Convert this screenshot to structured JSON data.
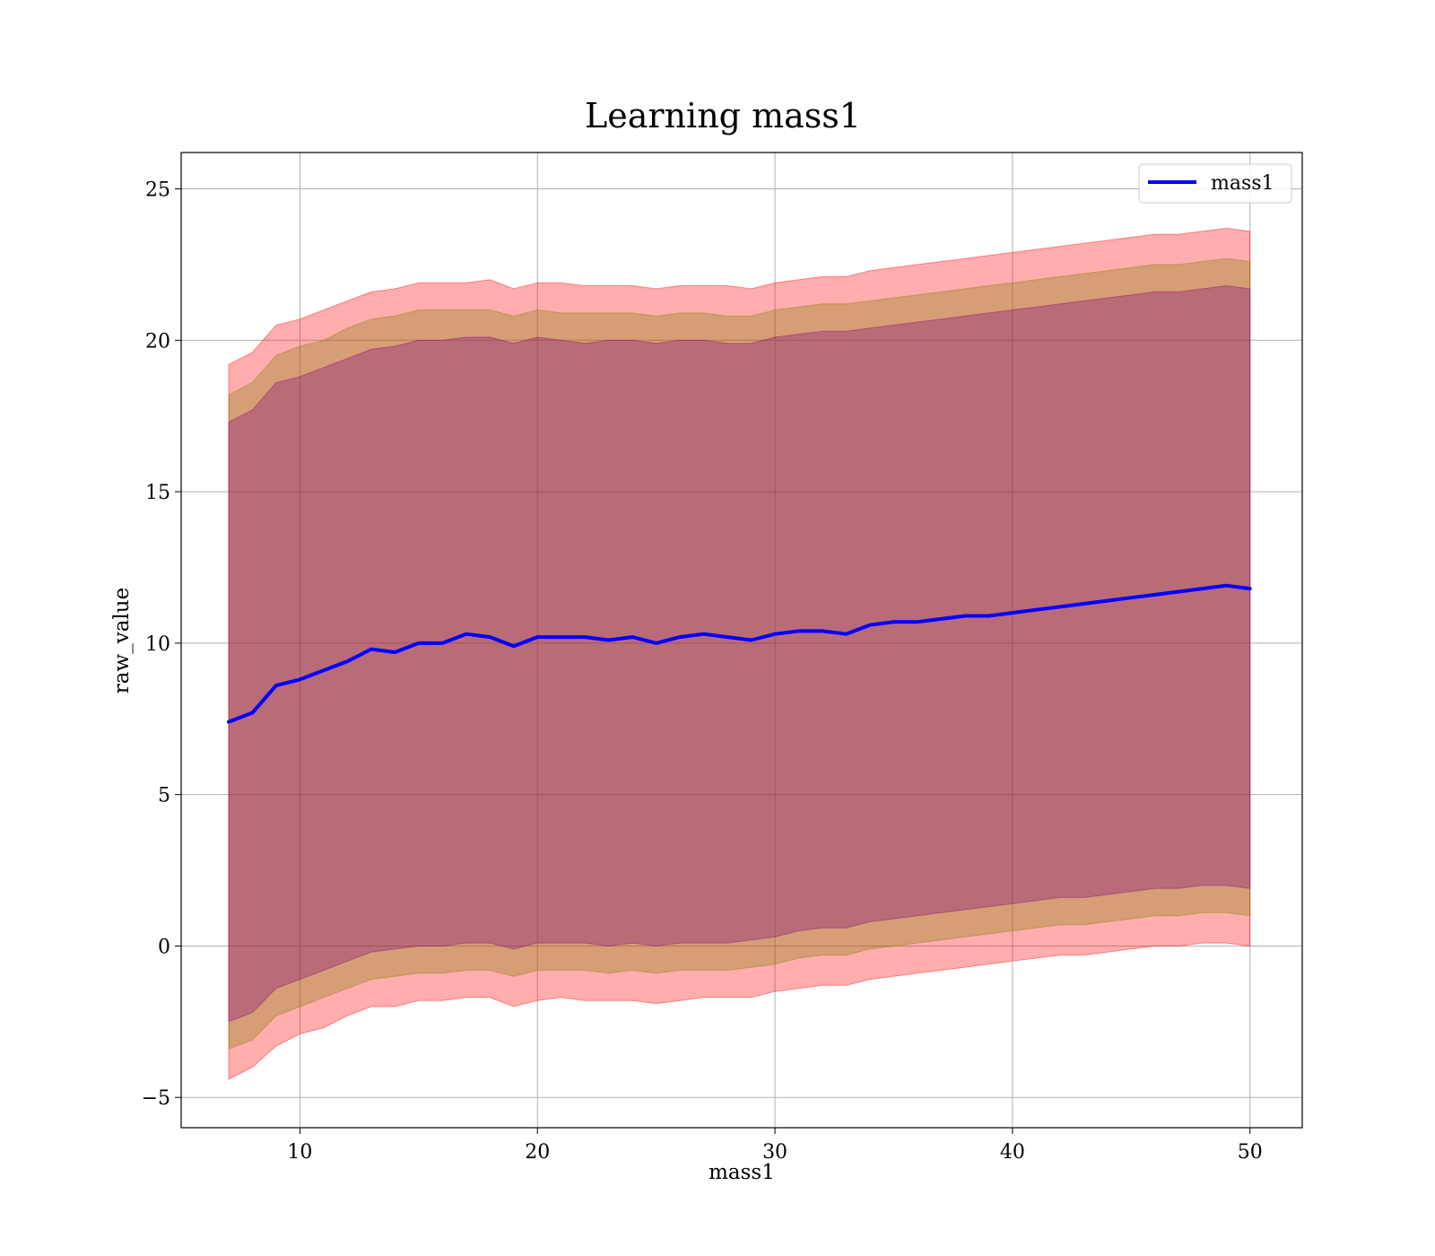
{
  "chart_data": {
    "type": "line",
    "title": "Learning mass1",
    "xlabel": "mass1",
    "ylabel": "raw_value",
    "xlim": [
      5,
      52.2
    ],
    "ylim": [
      -6,
      26.2
    ],
    "xticks": [
      10,
      20,
      30,
      40,
      50
    ],
    "yticks": [
      -5,
      0,
      5,
      10,
      15,
      20,
      25
    ],
    "ytick_labels": [
      "−5",
      "0",
      "5",
      "10",
      "15",
      "20",
      "25"
    ],
    "grid": true,
    "legend_position": "top-right",
    "series": [
      {
        "name": "mass1",
        "color": "#0000ff",
        "x": [
          7,
          8,
          9,
          10,
          11,
          12,
          13,
          14,
          15,
          16,
          17,
          18,
          19,
          20,
          21,
          22,
          23,
          24,
          25,
          26,
          27,
          28,
          29,
          30,
          31,
          32,
          33,
          34,
          35,
          36,
          37,
          38,
          39,
          40,
          41,
          42,
          43,
          44,
          45,
          46,
          47,
          48,
          49,
          50
        ],
        "y": [
          7.4,
          7.7,
          8.6,
          8.8,
          9.1,
          9.4,
          9.8,
          9.7,
          10.0,
          10.0,
          10.3,
          10.2,
          9.9,
          10.2,
          10.2,
          10.2,
          10.1,
          10.2,
          10.0,
          10.2,
          10.3,
          10.2,
          10.1,
          10.3,
          10.4,
          10.4,
          10.3,
          10.6,
          10.7,
          10.7,
          10.8,
          10.9,
          10.9,
          11.0,
          11.1,
          11.2,
          11.3,
          11.4,
          11.5,
          11.6,
          11.7,
          11.8,
          11.9,
          11.8
        ]
      }
    ],
    "bands": [
      {
        "color": "#ff0000",
        "x": [
          7,
          8,
          9,
          10,
          11,
          12,
          13,
          14,
          15,
          16,
          17,
          18,
          19,
          20,
          21,
          22,
          23,
          24,
          25,
          26,
          27,
          28,
          29,
          30,
          31,
          32,
          33,
          34,
          35,
          36,
          37,
          38,
          39,
          40,
          41,
          42,
          43,
          44,
          45,
          46,
          47,
          48,
          49,
          50
        ],
        "upper": [
          19.2,
          19.6,
          20.5,
          20.7,
          21.0,
          21.3,
          21.6,
          21.7,
          21.9,
          21.9,
          21.9,
          22.0,
          21.7,
          21.9,
          21.9,
          21.8,
          21.8,
          21.8,
          21.7,
          21.8,
          21.8,
          21.8,
          21.7,
          21.9,
          22.0,
          22.1,
          22.1,
          22.3,
          22.4,
          22.5,
          22.6,
          22.7,
          22.8,
          22.9,
          23.0,
          23.1,
          23.2,
          23.3,
          23.4,
          23.5,
          23.5,
          23.6,
          23.7,
          23.6
        ],
        "lower": [
          -4.4,
          -4.0,
          -3.3,
          -2.9,
          -2.7,
          -2.3,
          -2.0,
          -2.0,
          -1.8,
          -1.8,
          -1.7,
          -1.7,
          -2.0,
          -1.8,
          -1.7,
          -1.8,
          -1.8,
          -1.8,
          -1.9,
          -1.8,
          -1.7,
          -1.7,
          -1.7,
          -1.5,
          -1.4,
          -1.3,
          -1.3,
          -1.1,
          -1.0,
          -0.9,
          -0.8,
          -0.7,
          -0.6,
          -0.5,
          -0.4,
          -0.3,
          -0.3,
          -0.2,
          -0.1,
          0.0,
          0.0,
          0.1,
          0.1,
          0.0
        ]
      },
      {
        "color": "#808000",
        "x": [
          7,
          8,
          9,
          10,
          11,
          12,
          13,
          14,
          15,
          16,
          17,
          18,
          19,
          20,
          21,
          22,
          23,
          24,
          25,
          26,
          27,
          28,
          29,
          30,
          31,
          32,
          33,
          34,
          35,
          36,
          37,
          38,
          39,
          40,
          41,
          42,
          43,
          44,
          45,
          46,
          47,
          48,
          49,
          50
        ],
        "upper": [
          18.2,
          18.6,
          19.5,
          19.8,
          20.0,
          20.4,
          20.7,
          20.8,
          21.0,
          21.0,
          21.0,
          21.0,
          20.8,
          21.0,
          20.9,
          20.9,
          20.9,
          20.9,
          20.8,
          20.9,
          20.9,
          20.8,
          20.8,
          21.0,
          21.1,
          21.2,
          21.2,
          21.3,
          21.4,
          21.5,
          21.6,
          21.7,
          21.8,
          21.9,
          22.0,
          22.1,
          22.2,
          22.3,
          22.4,
          22.5,
          22.5,
          22.6,
          22.7,
          22.6
        ],
        "lower": [
          -3.4,
          -3.1,
          -2.3,
          -2.0,
          -1.7,
          -1.4,
          -1.1,
          -1.0,
          -0.9,
          -0.9,
          -0.8,
          -0.8,
          -1.0,
          -0.8,
          -0.8,
          -0.8,
          -0.9,
          -0.8,
          -0.9,
          -0.8,
          -0.8,
          -0.8,
          -0.7,
          -0.6,
          -0.4,
          -0.3,
          -0.3,
          -0.1,
          0.0,
          0.1,
          0.2,
          0.3,
          0.4,
          0.5,
          0.6,
          0.7,
          0.7,
          0.8,
          0.9,
          1.0,
          1.0,
          1.1,
          1.1,
          1.0
        ]
      },
      {
        "color": "#800080",
        "x": [
          7,
          8,
          9,
          10,
          11,
          12,
          13,
          14,
          15,
          16,
          17,
          18,
          19,
          20,
          21,
          22,
          23,
          24,
          25,
          26,
          27,
          28,
          29,
          30,
          31,
          32,
          33,
          34,
          35,
          36,
          37,
          38,
          39,
          40,
          41,
          42,
          43,
          44,
          45,
          46,
          47,
          48,
          49,
          50
        ],
        "upper": [
          17.3,
          17.7,
          18.6,
          18.8,
          19.1,
          19.4,
          19.7,
          19.8,
          20.0,
          20.0,
          20.1,
          20.1,
          19.9,
          20.1,
          20.0,
          19.9,
          20.0,
          20.0,
          19.9,
          20.0,
          20.0,
          19.9,
          19.9,
          20.1,
          20.2,
          20.3,
          20.3,
          20.4,
          20.5,
          20.6,
          20.7,
          20.8,
          20.9,
          21.0,
          21.1,
          21.2,
          21.3,
          21.4,
          21.5,
          21.6,
          21.6,
          21.7,
          21.8,
          21.7
        ],
        "lower": [
          -2.5,
          -2.2,
          -1.4,
          -1.1,
          -0.8,
          -0.5,
          -0.2,
          -0.1,
          0.0,
          0.0,
          0.1,
          0.1,
          -0.1,
          0.1,
          0.1,
          0.1,
          0.0,
          0.1,
          0.0,
          0.1,
          0.1,
          0.1,
          0.2,
          0.3,
          0.5,
          0.6,
          0.6,
          0.8,
          0.9,
          1.0,
          1.1,
          1.2,
          1.3,
          1.4,
          1.5,
          1.6,
          1.6,
          1.7,
          1.8,
          1.9,
          1.9,
          2.0,
          2.0,
          1.9
        ]
      }
    ]
  }
}
